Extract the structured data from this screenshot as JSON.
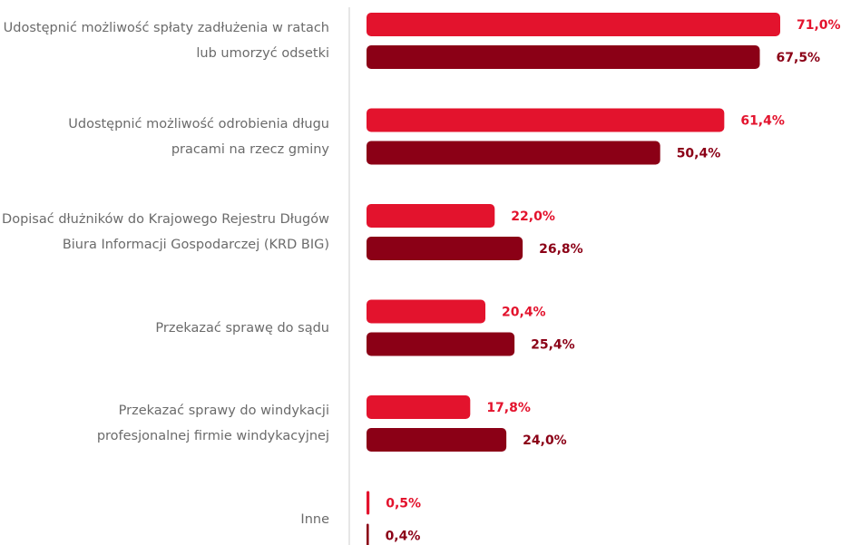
{
  "chart_data": {
    "type": "bar",
    "orientation": "horizontal",
    "categories": [
      "Udostępnić możliwość spłaty zadłużenia w ratach\nlub umorzyć odsetki",
      "Udostępnić możliwość odrobienia długu\npracami na rzecz gminy",
      "Dopisać dłużników do Krajowego Rejestru Długów\nBiura Informacji Gospodarczej (KRD BIG)",
      "Przekazać sprawę do sądu",
      "Przekazać sprawy do windykacji\nprofesjonalnej firmie windykacyjnej",
      "Inne"
    ],
    "series": [
      {
        "color": "#e3132d",
        "values": [
          71.0,
          61.4,
          22.0,
          20.4,
          17.8,
          0.5
        ],
        "value_labels": [
          "71,0%",
          "61,4%",
          "22,0%",
          "20,4%",
          "17,8%",
          "0,5%"
        ]
      },
      {
        "color": "#8b0016",
        "values": [
          67.5,
          50.4,
          26.8,
          25.4,
          24.0,
          0.4
        ],
        "value_labels": [
          "67,5%",
          "50,4%",
          "26,8%",
          "25,4%",
          "24,0%",
          "0,4%"
        ]
      }
    ]
  }
}
